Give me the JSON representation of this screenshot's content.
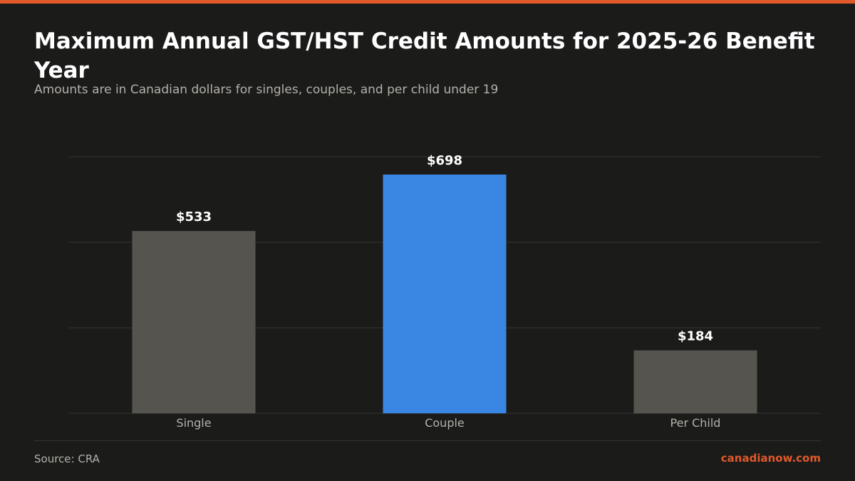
{
  "colors": {
    "accent": "#e05a2b",
    "highlight": "#3a87e3",
    "muted_bar": "#55544f",
    "grid": "#353533",
    "background": "#1b1b1a"
  },
  "header": {
    "title": "Maximum Annual GST/HST Credit Amounts for 2025-26 Benefit Year",
    "subtitle": "Amounts are in Canadian dollars for singles, couples, and per child under 19"
  },
  "footer": {
    "source": "Source: CRA",
    "brand": "canadianow.com"
  },
  "chart_data": {
    "type": "bar",
    "categories": [
      "Single",
      "Couple",
      "Per Child"
    ],
    "values": [
      533,
      698,
      184
    ],
    "data_labels": [
      "$533",
      "$698",
      "$184"
    ],
    "highlight": "Couple",
    "ylim": [
      0,
      750
    ],
    "gridlines": [
      0,
      250,
      500,
      750
    ],
    "grid": true,
    "xlabel": "",
    "ylabel": ""
  }
}
